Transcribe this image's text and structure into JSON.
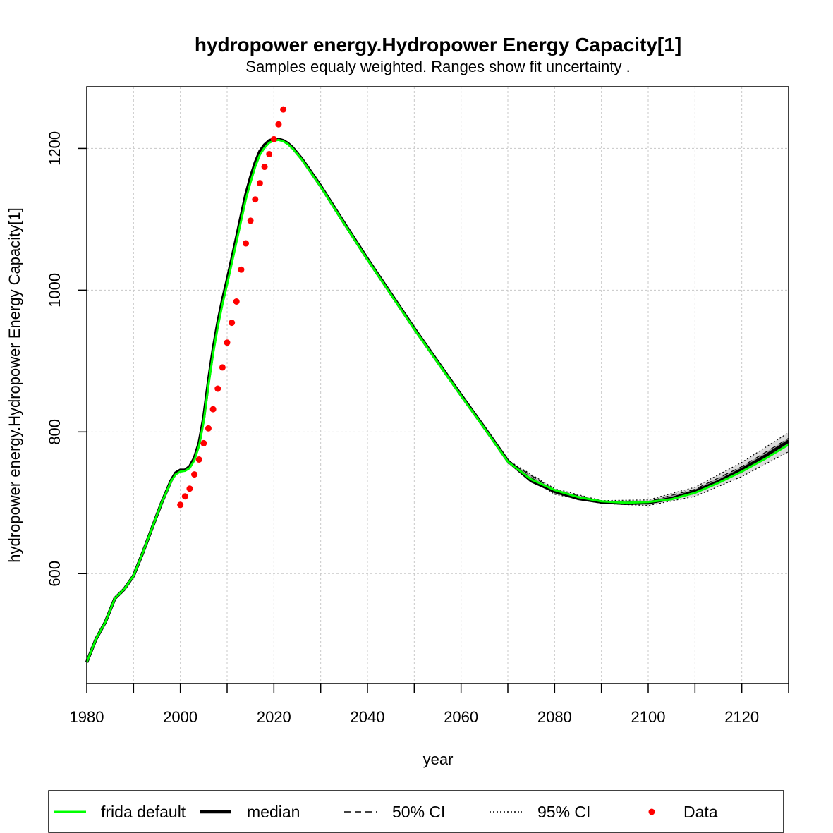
{
  "chart_data": {
    "type": "line",
    "title": "hydropower energy.Hydropower Energy Capacity[1]",
    "subtitle": "Samples equaly weighted. Ranges show  fit uncertainty .",
    "xlabel": "year",
    "ylabel": "hydropower energy.Hydropower Energy Capacity[1]",
    "xlim": [
      1980,
      2130
    ],
    "ylim": [
      445,
      1287
    ],
    "x_ticks": [
      1980,
      2000,
      2020,
      2040,
      2060,
      2080,
      2100,
      2120
    ],
    "x_minor_ticks": [
      1990,
      2010,
      2030,
      2050,
      2070,
      2090,
      2110,
      2130
    ],
    "y_ticks": [
      600,
      800,
      1000,
      1200
    ],
    "grid": true,
    "legend_position": "bottom",
    "colors": {
      "frida_default": "#00ff00",
      "median": "#000000",
      "ci_band": "#bdbdbd",
      "data": "#ff0000",
      "grid": "#c8c8c8"
    },
    "series": [
      {
        "name": "frida default",
        "style": "green-line",
        "x": [
          1980,
          1982,
          1984,
          1986,
          1988,
          1990,
          1992,
          1994,
          1996,
          1998,
          1999,
          2000,
          2001,
          2002,
          2003,
          2004,
          2005,
          2006,
          2007,
          2008,
          2009,
          2010,
          2011,
          2012,
          2013,
          2014,
          2015,
          2016,
          2017,
          2018,
          2019,
          2020,
          2021,
          2022,
          2023,
          2024,
          2026,
          2028,
          2030,
          2035,
          2040,
          2045,
          2050,
          2055,
          2060,
          2065,
          2070,
          2075,
          2080,
          2085,
          2090,
          2095,
          2100,
          2105,
          2110,
          2115,
          2120,
          2125,
          2130
        ],
        "y": [
          475,
          508,
          532,
          565,
          578,
          597,
          630,
          665,
          700,
          730,
          740,
          744,
          745,
          749,
          760,
          780,
          815,
          865,
          910,
          948,
          980,
          1008,
          1038,
          1068,
          1098,
          1128,
          1152,
          1174,
          1191,
          1201,
          1208,
          1211,
          1212,
          1210,
          1206,
          1200,
          1184,
          1165,
          1146,
          1094,
          1043,
          994,
          945,
          898,
          851,
          805,
          758,
          733,
          718,
          708,
          702,
          700,
          701,
          705,
          714,
          728,
          744,
          762,
          782
        ]
      },
      {
        "name": "median",
        "style": "black-line",
        "x": [
          1980,
          1982,
          1984,
          1986,
          1988,
          1990,
          1992,
          1994,
          1996,
          1998,
          1999,
          2000,
          2001,
          2002,
          2003,
          2004,
          2005,
          2006,
          2007,
          2008,
          2009,
          2010,
          2011,
          2012,
          2013,
          2014,
          2015,
          2016,
          2017,
          2018,
          2019,
          2020,
          2021,
          2022,
          2023,
          2024,
          2026,
          2028,
          2030,
          2035,
          2040,
          2045,
          2050,
          2055,
          2060,
          2065,
          2070,
          2075,
          2080,
          2085,
          2090,
          2095,
          2100,
          2105,
          2110,
          2115,
          2120,
          2125,
          2130
        ],
        "y": [
          475,
          508,
          532,
          565,
          578,
          597,
          630,
          665,
          700,
          731,
          742,
          746,
          746,
          751,
          763,
          784,
          820,
          871,
          916,
          954,
          986,
          1014,
          1044,
          1074,
          1105,
          1135,
          1159,
          1180,
          1196,
          1205,
          1211,
          1213,
          1213,
          1211,
          1207,
          1201,
          1185,
          1166,
          1147,
          1095,
          1044,
          995,
          946,
          899,
          852,
          806,
          759,
          731,
          716,
          706,
          701,
          699,
          700,
          706,
          716,
          730,
          747,
          766,
          787
        ]
      }
    ],
    "ci_50": {
      "name": "50% CI",
      "x": [
        2070,
        2080,
        2090,
        2100,
        2110,
        2120,
        2130
      ],
      "lower": [
        757,
        714,
        700,
        698,
        713,
        743,
        783
      ],
      "upper": [
        759,
        718,
        702,
        702,
        719,
        751,
        791
      ]
    },
    "ci_95": {
      "name": "95% CI",
      "x": [
        2070,
        2080,
        2090,
        2100,
        2110,
        2120,
        2130
      ],
      "lower": [
        756,
        712,
        699,
        696,
        709,
        737,
        772
      ],
      "upper": [
        760,
        720,
        703,
        704,
        722,
        757,
        799
      ]
    },
    "data_points": {
      "name": "Data",
      "x": [
        2000,
        2001,
        2002,
        2003,
        2004,
        2005,
        2006,
        2007,
        2008,
        2009,
        2010,
        2011,
        2012,
        2013,
        2014,
        2015,
        2016,
        2017,
        2018,
        2019,
        2020,
        2021,
        2022
      ],
      "y": [
        697,
        709,
        720,
        740,
        761,
        784,
        805,
        832,
        861,
        891,
        926,
        954,
        984,
        1029,
        1066,
        1098,
        1128,
        1151,
        1174,
        1192,
        1213,
        1234,
        1255
      ]
    },
    "legend": [
      {
        "label": "frida default",
        "type": "green-line"
      },
      {
        "label": "median",
        "type": "black-line"
      },
      {
        "label": "50% CI",
        "type": "dashed-line"
      },
      {
        "label": "95% CI",
        "type": "dotted-line"
      },
      {
        "label": "Data",
        "type": "red-dot"
      }
    ]
  }
}
